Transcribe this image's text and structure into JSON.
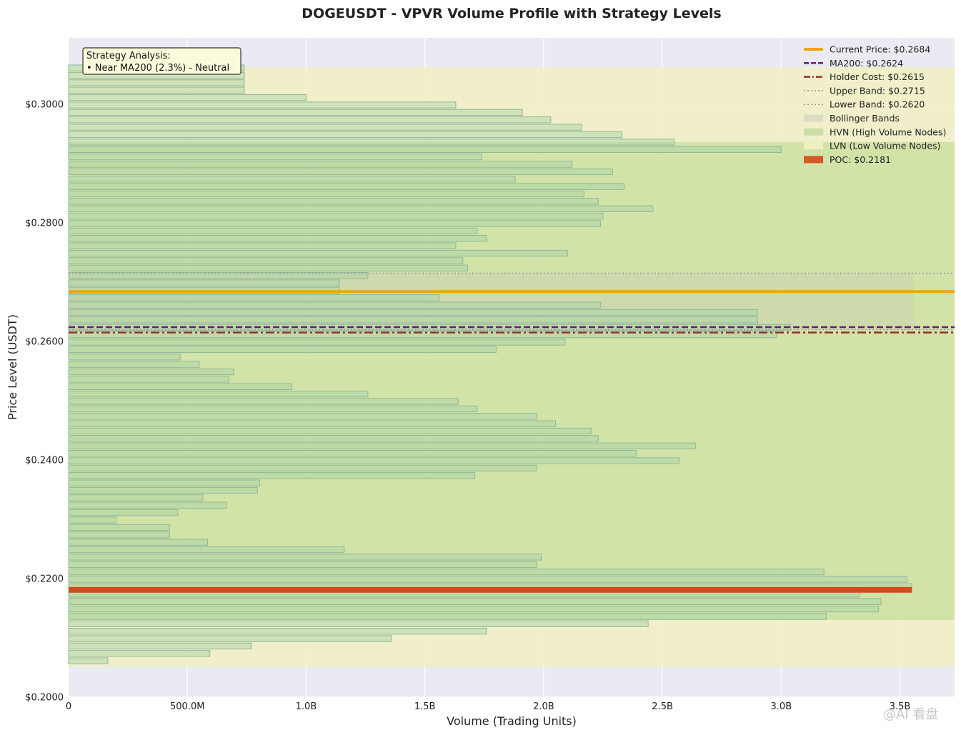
{
  "chart_data": {
    "type": "bar",
    "orientation": "horizontal",
    "title": "DOGEUSDT - VPVR Volume Profile with Strategy Levels",
    "xlabel": "Volume (Trading Units)",
    "ylabel": "Price Level (USDT)",
    "xlim": [
      0,
      3730000000
    ],
    "ylim": [
      0.2,
      0.3112
    ],
    "x_ticks": [
      0,
      500000000,
      1000000000,
      1500000000,
      2000000000,
      2500000000,
      3000000000,
      3500000000
    ],
    "x_tick_labels": [
      "0",
      "500.0M",
      "1.0B",
      "1.5B",
      "2.0B",
      "2.5B",
      "3.0B",
      "3.5B"
    ],
    "y_ticks": [
      0.2,
      0.22,
      0.24,
      0.26,
      0.28,
      0.3
    ],
    "y_tick_labels": [
      "$0.2000",
      "$0.2200",
      "$0.2400",
      "$0.2600",
      "$0.2800",
      "$0.3000"
    ],
    "grid": true,
    "bin_start": 0.2055,
    "bin_size": 0.00125,
    "bin_volumes": [
      165000000,
      595000000,
      770000000,
      1360000000,
      1760000000,
      2440000000,
      3190000000,
      3410000000,
      3420000000,
      3330000000,
      3550000000,
      3530000000,
      3180000000,
      1970000000,
      1990000000,
      1160000000,
      585000000,
      425000000,
      425000000,
      200000000,
      460000000,
      665000000,
      565000000,
      795000000,
      805000000,
      1710000000,
      1970000000,
      2570000000,
      2390000000,
      2640000000,
      2230000000,
      2200000000,
      2050000000,
      1970000000,
      1720000000,
      1640000000,
      1260000000,
      940000000,
      675000000,
      695000000,
      550000000,
      470000000,
      1800000000,
      2090000000,
      2980000000,
      3040000000,
      2900000000,
      2900000000,
      2240000000,
      1560000000,
      1140000000,
      1140000000,
      1260000000,
      1680000000,
      1660000000,
      2100000000,
      1630000000,
      1760000000,
      1720000000,
      2240000000,
      2250000000,
      2460000000,
      2230000000,
      2170000000,
      2340000000,
      1880000000,
      2290000000,
      2120000000,
      1740000000,
      3000000000,
      2550000000,
      2330000000,
      2160000000,
      2030000000,
      1910000000,
      1630000000,
      1000000000,
      740000000,
      740000000,
      740000000,
      740000000
    ],
    "hvn_price_range": [
      0.213,
      0.29363
    ],
    "value_area_price_range": [
      0.20513,
      0.30625
    ],
    "levels": {
      "current_price": 0.2684,
      "ma200": 0.2624,
      "holder_cost": 0.2615,
      "upper_band": 0.2715,
      "lower_band": 0.262,
      "poc": 0.2181
    },
    "bollinger_band": {
      "upper": 0.2715,
      "lower": 0.262,
      "x_extent": 3560000000
    },
    "legend": {
      "position": "top-right",
      "entries": [
        {
          "label": "Current Price: $0.2684",
          "style": "solid-thick",
          "color": "#F2A413"
        },
        {
          "label": "MA200: $0.2624",
          "style": "dashed",
          "color": "#6A1B7A"
        },
        {
          "label": "Holder Cost: $0.2615",
          "style": "dashdot",
          "color": "#8E3030"
        },
        {
          "label": "Upper Band: $0.2715",
          "style": "dotted",
          "color": "#999999"
        },
        {
          "label": "Lower Band: $0.2620",
          "style": "dotted",
          "color": "#999999"
        },
        {
          "label": "Bollinger Bands",
          "style": "patch",
          "color": "#d9d9c4"
        },
        {
          "label": "HVN (High Volume Nodes)",
          "style": "patch",
          "color": "#c9dca6"
        },
        {
          "label": "LVN (Low Volume Nodes)",
          "style": "patch",
          "color": "#f2f0c2"
        },
        {
          "label": "POC: $0.2181",
          "style": "patch",
          "color": "#D44A1C"
        }
      ]
    },
    "annotation": {
      "line1": "Strategy Analysis:",
      "line2": "• Near MA200 (2.3%) - Neutral"
    },
    "colors": {
      "plot_bg": "#EAEAF2",
      "bar_fill": "#A6D1A6",
      "bar_edge": "#8FB89A",
      "hvn_fill": "#C5DE9A",
      "lvn_fill": "#F2F0C2",
      "bollinger_fill": "#C9CFB4",
      "current_price": "#F2A413",
      "ma200": "#6A1B7A",
      "holder_cost": "#8E3030",
      "band_line": "#999999",
      "poc": "#D44A1C"
    }
  },
  "watermark": "@AI 看盘"
}
